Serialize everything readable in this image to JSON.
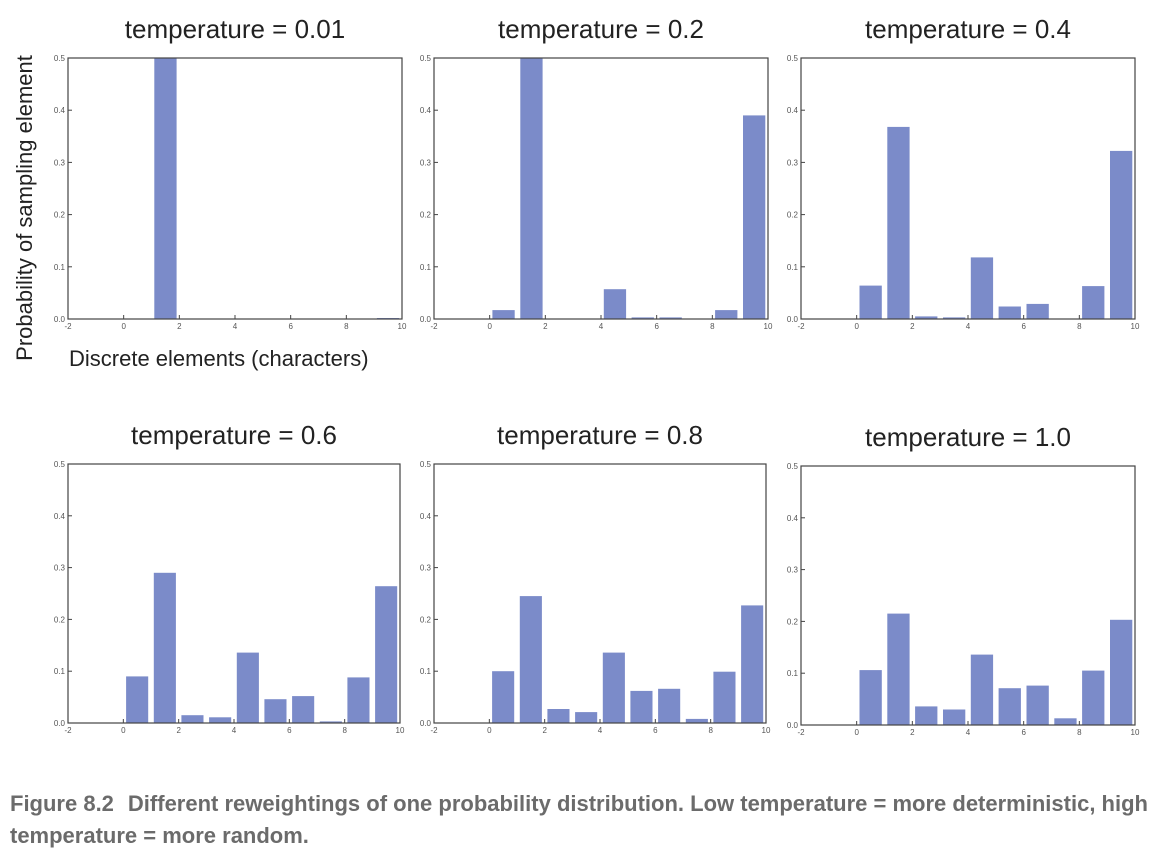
{
  "chart_data": {
    "type": "bar",
    "ylabel": "Probability of sampling element",
    "xlabel": "Discrete elements (characters)",
    "x": [
      0,
      1,
      2,
      3,
      4,
      5,
      6,
      7,
      8,
      9
    ],
    "xlim": [
      -2,
      10
    ],
    "xticks": [
      "-2",
      "0",
      "2",
      "4",
      "6",
      "8",
      "10"
    ],
    "grid": false,
    "bar_color": "#7b8bc9",
    "panels": [
      {
        "title": "temperature = 0.01",
        "ylim": [
          0,
          0.5
        ],
        "yticks": [
          "0.0",
          "0.1",
          "0.2",
          "0.3",
          "0.4",
          "0.5"
        ],
        "values": [
          0.0,
          0.5,
          0.0,
          0.0,
          0.0,
          0.0,
          0.0,
          0.0,
          0.0,
          0.002
        ]
      },
      {
        "title": "temperature = 0.2",
        "ylim": [
          0,
          0.5
        ],
        "yticks": [
          "0.0",
          "0.1",
          "0.2",
          "0.3",
          "0.4",
          "0.5"
        ],
        "values": [
          0.017,
          0.5,
          0.0,
          0.0,
          0.057,
          0.003,
          0.003,
          0.0,
          0.017,
          0.39
        ]
      },
      {
        "title": "temperature = 0.4",
        "ylim": [
          0,
          0.5
        ],
        "yticks": [
          "0.0",
          "0.1",
          "0.2",
          "0.3",
          "0.4",
          "0.5"
        ],
        "values": [
          0.064,
          0.368,
          0.005,
          0.003,
          0.118,
          0.024,
          0.029,
          0.0,
          0.063,
          0.322
        ]
      },
      {
        "title": "temperature = 0.6",
        "ylim": [
          0,
          0.5
        ],
        "yticks": [
          "0.0",
          "0.1",
          "0.2",
          "0.3",
          "0.4",
          "0.5"
        ],
        "values": [
          0.09,
          0.29,
          0.015,
          0.011,
          0.136,
          0.046,
          0.052,
          0.003,
          0.088,
          0.264
        ]
      },
      {
        "title": "temperature = 0.8",
        "ylim": [
          0,
          0.5
        ],
        "yticks": [
          "0.0",
          "0.1",
          "0.2",
          "0.3",
          "0.4",
          "0.5"
        ],
        "values": [
          0.1,
          0.245,
          0.027,
          0.021,
          0.136,
          0.062,
          0.066,
          0.008,
          0.099,
          0.227
        ]
      },
      {
        "title": "temperature = 1.0",
        "ylim": [
          0,
          0.5
        ],
        "yticks": [
          "0.0",
          "0.1",
          "0.2",
          "0.3",
          "0.4",
          "0.5"
        ],
        "values": [
          0.106,
          0.215,
          0.036,
          0.03,
          0.136,
          0.071,
          0.076,
          0.013,
          0.105,
          0.203
        ]
      }
    ]
  },
  "caption": {
    "figure_number": "Figure 8.2",
    "text": "Different reweightings of one probability distribution. Low temperature = more deterministic, high temperature = more random."
  }
}
